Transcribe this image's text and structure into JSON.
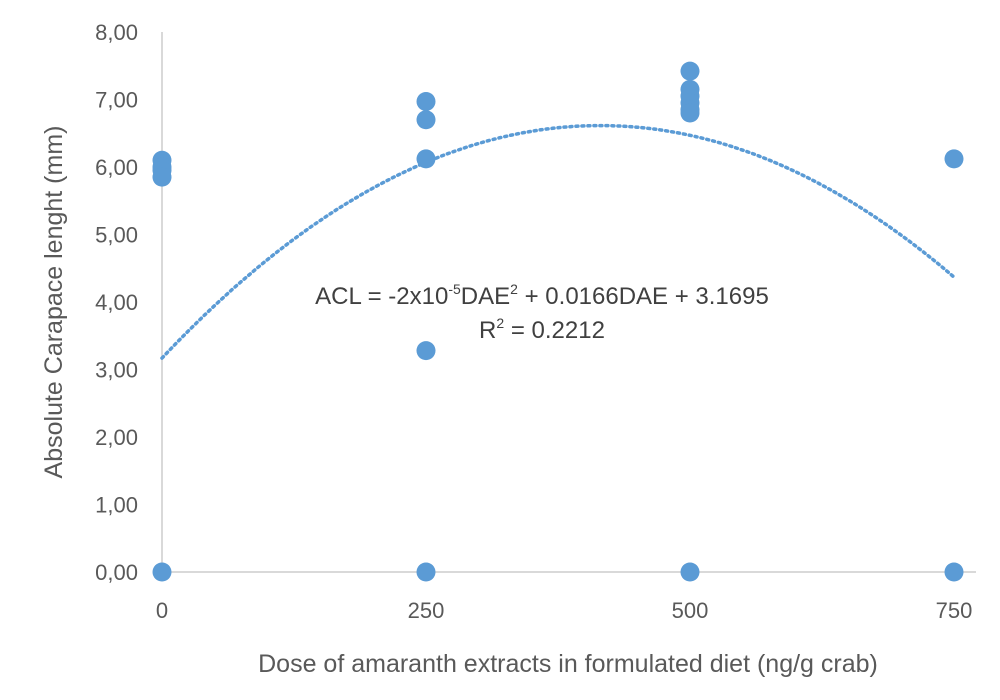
{
  "chart_data": {
    "type": "scatter",
    "xlabel": "Dose of amaranth extracts in formulated diet (ng/g crab)",
    "ylabel": "Absolute Carapace lenght (mm)",
    "xlim": [
      0,
      750
    ],
    "ylim": [
      0,
      8
    ],
    "x_ticks": [
      "0",
      "250",
      "500",
      "750"
    ],
    "y_ticks": [
      "0,00",
      "1,00",
      "2,00",
      "3,00",
      "4,00",
      "5,00",
      "6,00",
      "7,00",
      "8,00"
    ],
    "grid": false,
    "legend": "none",
    "series": [
      {
        "color": "#5b9bd5",
        "points": [
          [
            0,
            6.1
          ],
          [
            0,
            6.0
          ],
          [
            0,
            5.95
          ],
          [
            0,
            5.85
          ],
          [
            0,
            0.0
          ],
          [
            250,
            6.97
          ],
          [
            250,
            6.7
          ],
          [
            250,
            6.12
          ],
          [
            250,
            3.28
          ],
          [
            250,
            0.0
          ],
          [
            500,
            7.42
          ],
          [
            500,
            7.15
          ],
          [
            500,
            7.05
          ],
          [
            500,
            6.95
          ],
          [
            500,
            6.85
          ],
          [
            500,
            6.8
          ],
          [
            500,
            0.0
          ],
          [
            750,
            6.12
          ],
          [
            750,
            0.0
          ]
        ]
      }
    ],
    "trendline": {
      "type": "polynomial",
      "order": 2,
      "coefficients": [
        -2e-05,
        0.0166,
        3.1695
      ],
      "color": "#5b9bd5",
      "style": "dotted"
    },
    "annotations": {
      "equation_prefix": "ACL = -2x10",
      "equation_exp": "-5",
      "equation_mid": "DAE",
      "equation_sq": "2",
      "equation_suffix": " + 0.0166DAE + 3.1695",
      "r2_prefix": "R",
      "r2_sq": "2",
      "r2_suffix": " = 0.2212"
    }
  }
}
